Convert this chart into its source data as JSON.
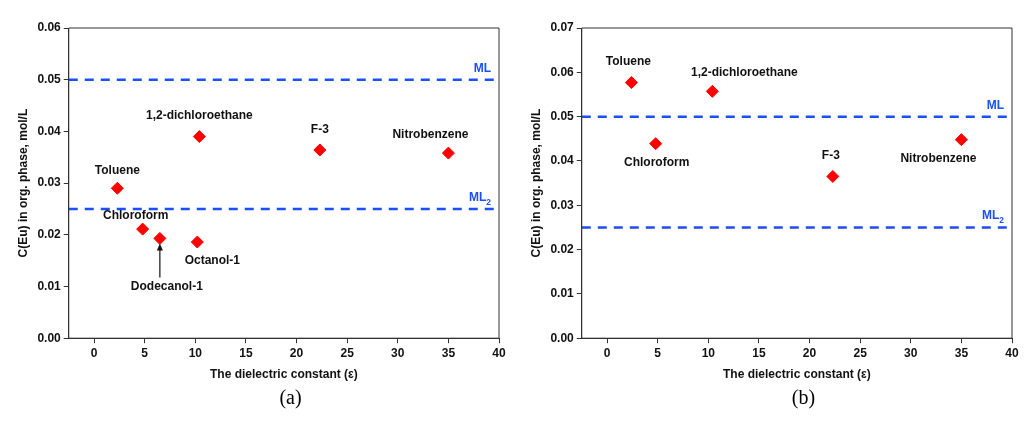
{
  "chart_data": [
    {
      "type": "scatter",
      "xlabel": "The dielectric constant (ε)",
      "ylabel": "C(Eu) in org. phase, mol/L",
      "marker": "diamond",
      "xlim": [
        -2.5,
        40
      ],
      "xticks": [
        0,
        5,
        10,
        15,
        20,
        25,
        30,
        35,
        40
      ],
      "ylim": [
        0,
        0.06
      ],
      "yticks": [
        {
          "value": 0,
          "label": "0.00"
        },
        {
          "value": 0.01,
          "label": "0.01"
        },
        {
          "value": 0.02,
          "label": "0.02"
        },
        {
          "value": 0.03,
          "label": "0.03"
        },
        {
          "value": 0.04,
          "label": "0.04"
        },
        {
          "value": 0.05,
          "label": "0.05"
        },
        {
          "value": 0.06,
          "label": "0.06"
        }
      ],
      "series": [
        {
          "color": "#ff0000",
          "x": [
            2.3,
            4.8,
            6.5,
            10.2,
            10.4,
            22.3,
            35
          ],
          "values": [
            0.029,
            0.0211,
            0.0193,
            0.0186,
            0.039,
            0.0364,
            0.0358
          ]
        }
      ],
      "ref_lines": [
        {
          "axis": "y",
          "value": 0.05,
          "label": "ML",
          "color": "#1a4fff",
          "line_style": "dashed"
        },
        {
          "axis": "y",
          "value": 0.025,
          "label": "ML$_{2}$",
          "color": "#1a4fff",
          "line_style": "dashed"
        }
      ],
      "annotations": [
        {
          "text": "Toluene",
          "x": 2.3,
          "y": 0.029
        },
        {
          "text": "Chloroform",
          "x": 4.8,
          "y": 0.0211
        },
        {
          "text": "Dodecanol-1",
          "x": 6.5,
          "y": 0.0193
        },
        {
          "text": "Octanol-1",
          "x": 10.2,
          "y": 0.0186
        },
        {
          "text": "1,2-dichloroethane",
          "x": 10.4,
          "y": 0.039
        },
        {
          "text": "F-3",
          "x": 22.3,
          "y": 0.0364
        },
        {
          "text": "Nitrobenzene",
          "x": 35,
          "y": 0.0358
        },
        "(a)"
      ]
    },
    {
      "type": "scatter",
      "xlabel": "The dielectric constant (ε)",
      "ylabel": "C(Eu) in org. phase, mol/L",
      "marker": "diamond",
      "xlim": [
        -2.5,
        40
      ],
      "xticks": [
        0,
        5,
        10,
        15,
        20,
        25,
        30,
        35,
        40
      ],
      "ylim": [
        0,
        0.07
      ],
      "yticks": [
        {
          "value": 0,
          "label": "0.00"
        },
        {
          "value": 0.01,
          "label": "0.01"
        },
        {
          "value": 0.02,
          "label": "0.02"
        },
        {
          "value": 0.03,
          "label": "0.03"
        },
        {
          "value": 0.04,
          "label": "0.04"
        },
        {
          "value": 0.05,
          "label": "0.05"
        },
        {
          "value": 0.06,
          "label": "0.06"
        },
        {
          "value": 0.07,
          "label": "0.07"
        }
      ],
      "series": [
        {
          "color": "#ff0000",
          "x": [
            2.4,
            4.8,
            10.4,
            22.3,
            35
          ],
          "values": [
            0.0577,
            0.0439,
            0.0557,
            0.0365,
            0.0448
          ]
        }
      ],
      "ref_lines": [
        {
          "axis": "y",
          "value": 0.05,
          "label": "ML",
          "color": "#1a4fff",
          "line_style": "dashed"
        },
        {
          "axis": "y",
          "value": 0.025,
          "label": "ML$_{2}$",
          "color": "#1a4fff",
          "line_style": "dashed"
        }
      ],
      "annotations": [
        {
          "text": "Toluene",
          "x": 2.4,
          "y": 0.0577
        },
        {
          "text": "Chloroform",
          "x": 4.8,
          "y": 0.0439
        },
        {
          "text": "1,2-dichloroethane",
          "x": 10.4,
          "y": 0.0557
        },
        {
          "text": "F-3",
          "x": 22.3,
          "y": 0.0365
        },
        {
          "text": "Nitrobenzene",
          "x": 35,
          "y": 0.0448
        },
        "(b)"
      ]
    }
  ]
}
